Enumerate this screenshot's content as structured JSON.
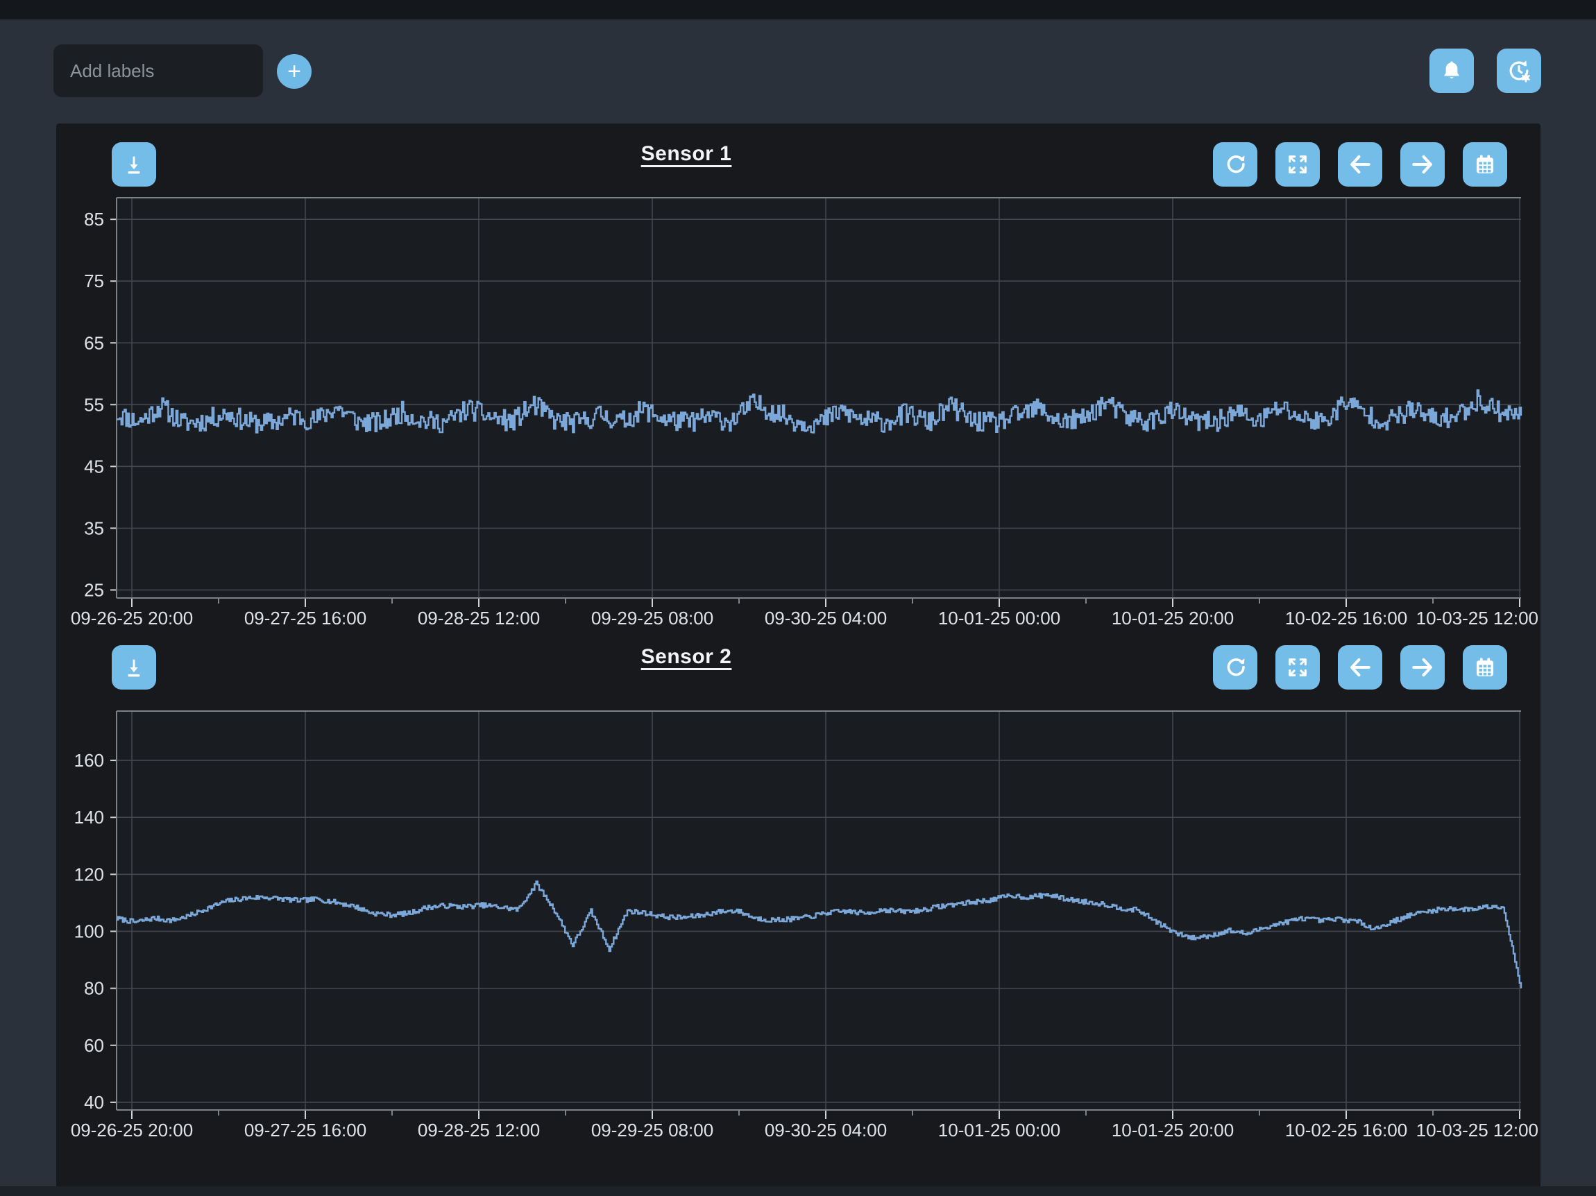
{
  "header": {
    "add_labels_placeholder": "Add labels",
    "plus_label": "+",
    "icons": [
      "plus-icon",
      "bell-icon",
      "history-settings-icon"
    ]
  },
  "colors": {
    "page_background": "#2b313a",
    "panel_background": "#17191d",
    "top_strip": "#14171b",
    "button_blue": "#74bde8",
    "trace_blue": "#7ba7d9",
    "grid": "#43474e",
    "axis": "#9aa0a6",
    "tick_text": "#dfe2e6"
  },
  "toolbar_icons": [
    "download-icon",
    "refresh-icon",
    "expand-icon",
    "pan-left-icon",
    "pan-right-icon",
    "calendar-icon"
  ],
  "chart_data": [
    {
      "type": "line",
      "title": "Sensor 1",
      "xlabel": "",
      "ylabel": "",
      "x_tick_labels": [
        "09-26-25 20:00",
        "09-27-25 16:00",
        "09-28-25 12:00",
        "09-29-25 08:00",
        "09-30-25 04:00",
        "10-01-25 00:00",
        "10-01-25 20:00",
        "10-02-25 16:00",
        "10-03-25 12:00"
      ],
      "y_ticks": [
        85,
        75,
        65,
        55,
        45,
        35,
        25
      ],
      "ylim": [
        23.7,
        88.5
      ],
      "grid": true,
      "legend": "none",
      "line_color": "#7ba7d9",
      "series": [
        {
          "name": "Sensor 1",
          "description": "high-frequency noisy step signal, band ~50.5-57.5, center ~52.5",
          "anchors": [
            53.5,
            52.2,
            54.8,
            52.0,
            52.4,
            53.6,
            52.1,
            52.0,
            53.2,
            52.4,
            54.6,
            52.2,
            52.0,
            53.8,
            52.3,
            52.1,
            54.4,
            53.0,
            52.2,
            55.0,
            52.4,
            52.0,
            53.4,
            52.2,
            54.2,
            52.6,
            52.1,
            53.0,
            52.3,
            55.2,
            53.8,
            52.2,
            52.0,
            54.0,
            52.4,
            52.2,
            53.6,
            52.1,
            54.8,
            52.3,
            52.0,
            53.2,
            54.4,
            52.2,
            52.6,
            55.4,
            53.0,
            52.2,
            54.0,
            52.4,
            52.1,
            53.8,
            52.2,
            54.6,
            52.8,
            52.2,
            55.6,
            53.2,
            52.4,
            54.2,
            52.6,
            53.0,
            55.8,
            54.0,
            53.2
          ],
          "jitter": 1.7,
          "subdivide": 14,
          "seed": 11,
          "clamp": [
            49.8,
            58.6
          ]
        }
      ]
    },
    {
      "type": "line",
      "title": "Sensor 2",
      "xlabel": "",
      "ylabel": "",
      "x_tick_labels": [
        "09-26-25 20:00",
        "09-27-25 16:00",
        "09-28-25 12:00",
        "09-29-25 08:00",
        "09-30-25 04:00",
        "10-01-25 00:00",
        "10-01-25 20:00",
        "10-02-25 16:00",
        "10-03-25 12:00"
      ],
      "y_ticks": [
        160,
        140,
        120,
        100,
        80,
        60,
        40
      ],
      "ylim": [
        37.3,
        177.3
      ],
      "grid": true,
      "legend": "none",
      "line_color": "#7ba7d9",
      "series": [
        {
          "name": "Sensor 2",
          "description": "smoother signal ~100-113 with up-spike to ~117, down-spikes to ~94-95 near 09-28 12:00, dip to ~98 after 10-02 16:00, final drop to ~80",
          "anchors": [
            104.5,
            103.2,
            104.6,
            103.8,
            105.5,
            108.2,
            110.6,
            111.6,
            112.0,
            111.4,
            110.8,
            111.3,
            110.2,
            108.8,
            106.4,
            105.8,
            106.3,
            108.4,
            109.0,
            108.6,
            109.2,
            108.5,
            107.6,
            116.8,
            107.4,
            95.2,
            107.0,
            93.8,
            107.2,
            106.4,
            105.1,
            104.8,
            105.6,
            106.9,
            107.3,
            104.6,
            103.9,
            104.3,
            105.1,
            106.6,
            107.1,
            106.3,
            107.6,
            106.9,
            107.3,
            108.6,
            109.6,
            110.3,
            111.1,
            112.6,
            111.9,
            112.9,
            111.4,
            110.4,
            109.7,
            108.2,
            107.4,
            103.4,
            99.4,
            97.6,
            98.6,
            100.3,
            99.1,
            101.6,
            103.1,
            104.6,
            103.7,
            104.3,
            103.4,
            100.9,
            103.6,
            105.9,
            107.2,
            108.1,
            107.6,
            108.6,
            108.9,
            80.0
          ],
          "jitter": 0.85,
          "subdivide": 12,
          "seed": 7,
          "clamp": [
            79.5,
            117.5
          ]
        }
      ]
    }
  ]
}
